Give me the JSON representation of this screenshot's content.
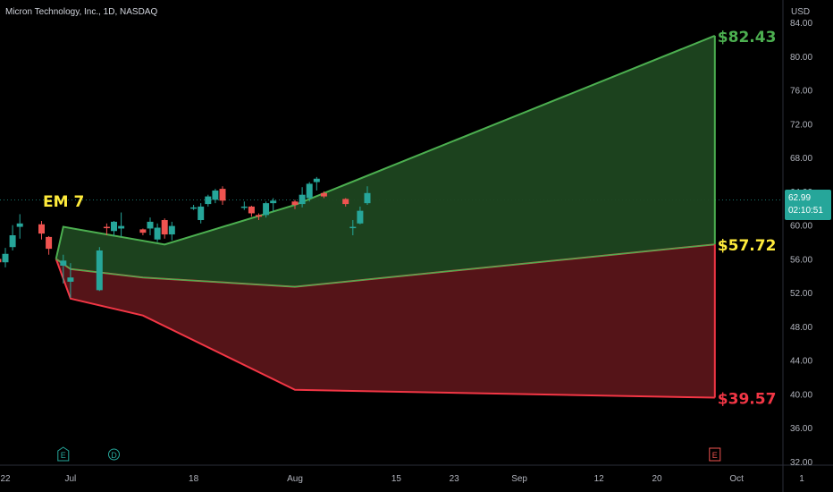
{
  "header": {
    "symbol_title": "Micron Technology, Inc., 1D, NASDAQ"
  },
  "axis": {
    "currency": "USD"
  },
  "price_tag": {
    "price": "62.99",
    "countdown": "02:10:51"
  },
  "colors": {
    "up": "#26a69a",
    "down": "#ef5350",
    "upper_band": "#4caf50",
    "lower_band": "#f23645",
    "upper_fill": "#1e4620",
    "lower_fill": "#5a1519",
    "label_yellow": "#ffeb3b"
  },
  "chart_data": {
    "type": "candlestick",
    "y_ticks": [
      "32.00",
      "36.00",
      "40.00",
      "44.00",
      "48.00",
      "52.00",
      "56.00",
      "60.00",
      "64.00",
      "68.00",
      "72.00",
      "76.00",
      "80.00",
      "84.00"
    ],
    "ylim": [
      32,
      84.5
    ],
    "x_ticks": [
      {
        "label": "22",
        "date": "2022-06-22"
      },
      {
        "label": "Jul",
        "date": "2022-07-01"
      },
      {
        "label": "18",
        "date": "2022-07-18"
      },
      {
        "label": "Aug",
        "date": "2022-08-01"
      },
      {
        "label": "15",
        "date": "2022-08-15"
      },
      {
        "label": "23",
        "date": "2022-08-23"
      },
      {
        "label": "Sep",
        "date": "2022-09-01"
      },
      {
        "label": "12",
        "date": "2022-09-12"
      },
      {
        "label": "20",
        "date": "2022-09-20"
      },
      {
        "label": "Oct",
        "date": "2022-10-01"
      },
      {
        "label": "1",
        "date": "2022-10-10"
      }
    ],
    "candles": [
      {
        "date": "2022-06-21",
        "o": 56.0,
        "h": 56.8,
        "l": 54.5,
        "c": 55.6
      },
      {
        "date": "2022-06-22",
        "o": 55.6,
        "h": 57.3,
        "l": 55.0,
        "c": 56.6
      },
      {
        "date": "2022-06-23",
        "o": 57.4,
        "h": 60.0,
        "l": 57.0,
        "c": 58.8
      },
      {
        "date": "2022-06-24",
        "o": 59.8,
        "h": 61.3,
        "l": 58.4,
        "c": 60.2
      },
      {
        "date": "2022-06-27",
        "o": 60.1,
        "h": 60.5,
        "l": 58.3,
        "c": 59.0
      },
      {
        "date": "2022-06-28",
        "o": 58.6,
        "h": 58.7,
        "l": 56.5,
        "c": 57.2
      },
      {
        "date": "2022-06-30",
        "o": 55.2,
        "h": 56.5,
        "l": 53.1,
        "c": 55.8
      },
      {
        "date": "2022-07-01",
        "o": 53.3,
        "h": 55.5,
        "l": 51.4,
        "c": 53.8
      },
      {
        "date": "2022-07-05",
        "o": 52.3,
        "h": 57.4,
        "l": 52.2,
        "c": 57.0
      },
      {
        "date": "2022-07-06",
        "o": 59.8,
        "h": 60.2,
        "l": 58.8,
        "c": 59.7
      },
      {
        "date": "2022-07-07",
        "o": 59.3,
        "h": 60.5,
        "l": 58.7,
        "c": 60.4
      },
      {
        "date": "2022-07-08",
        "o": 59.6,
        "h": 61.5,
        "l": 58.6,
        "c": 59.9
      },
      {
        "date": "2022-07-11",
        "o": 59.5,
        "h": 59.6,
        "l": 58.8,
        "c": 59.1
      },
      {
        "date": "2022-07-12",
        "o": 59.6,
        "h": 60.9,
        "l": 58.8,
        "c": 60.4
      },
      {
        "date": "2022-07-13",
        "o": 58.3,
        "h": 60.2,
        "l": 58.0,
        "c": 59.7
      },
      {
        "date": "2022-07-14",
        "o": 60.6,
        "h": 60.8,
        "l": 58.4,
        "c": 58.9
      },
      {
        "date": "2022-07-15",
        "o": 58.9,
        "h": 60.4,
        "l": 58.2,
        "c": 59.9
      },
      {
        "date": "2022-07-18",
        "o": 62.0,
        "h": 62.4,
        "l": 61.8,
        "c": 62.1
      },
      {
        "date": "2022-07-19",
        "o": 60.6,
        "h": 62.6,
        "l": 60.2,
        "c": 62.2
      },
      {
        "date": "2022-07-20",
        "o": 62.5,
        "h": 63.6,
        "l": 62.2,
        "c": 63.4
      },
      {
        "date": "2022-07-21",
        "o": 63.0,
        "h": 64.3,
        "l": 62.6,
        "c": 64.1
      },
      {
        "date": "2022-07-22",
        "o": 64.3,
        "h": 64.6,
        "l": 62.4,
        "c": 62.9
      },
      {
        "date": "2022-07-25",
        "o": 62.1,
        "h": 62.8,
        "l": 61.8,
        "c": 62.2
      },
      {
        "date": "2022-07-26",
        "o": 62.2,
        "h": 62.3,
        "l": 61.0,
        "c": 61.4
      },
      {
        "date": "2022-07-27",
        "o": 61.2,
        "h": 61.4,
        "l": 60.6,
        "c": 61.0
      },
      {
        "date": "2022-07-28",
        "o": 61.2,
        "h": 62.8,
        "l": 60.9,
        "c": 62.6
      },
      {
        "date": "2022-07-29",
        "o": 62.6,
        "h": 63.2,
        "l": 61.6,
        "c": 62.9
      },
      {
        "date": "2022-08-01",
        "o": 62.8,
        "h": 63.0,
        "l": 61.9,
        "c": 62.4
      },
      {
        "date": "2022-08-02",
        "o": 62.5,
        "h": 64.5,
        "l": 62.1,
        "c": 63.6
      },
      {
        "date": "2022-08-03",
        "o": 63.2,
        "h": 65.1,
        "l": 62.8,
        "c": 64.9
      },
      {
        "date": "2022-08-04",
        "o": 65.1,
        "h": 65.7,
        "l": 64.1,
        "c": 65.5
      },
      {
        "date": "2022-08-05",
        "o": 63.8,
        "h": 64.0,
        "l": 63.2,
        "c": 63.4
      },
      {
        "date": "2022-08-08",
        "o": 63.1,
        "h": 63.2,
        "l": 62.2,
        "c": 62.5
      },
      {
        "date": "2022-08-09",
        "o": 59.8,
        "h": 60.6,
        "l": 58.8,
        "c": 59.8
      },
      {
        "date": "2022-08-10",
        "o": 60.2,
        "h": 62.2,
        "l": 60.1,
        "c": 61.7
      },
      {
        "date": "2022-08-11",
        "o": 62.6,
        "h": 64.6,
        "l": 62.4,
        "c": 63.8
      }
    ],
    "annotations": [
      {
        "text": "EM 7",
        "color": "#ffeb3b"
      },
      {
        "text": "$82.43",
        "value": 82.43,
        "color": "#4caf50"
      },
      {
        "text": "$57.72",
        "value": 57.72,
        "color": "#ffeb3b"
      },
      {
        "text": "$39.57",
        "value": 39.57,
        "color": "#f23645"
      }
    ],
    "event_markers": [
      {
        "letter": "E",
        "date": "2022-06-30",
        "color": "#26a69a",
        "shape": "pentagon"
      },
      {
        "letter": "D",
        "date": "2022-07-07",
        "color": "#26a69a",
        "shape": "circle"
      },
      {
        "letter": "E",
        "date": "2022-09-28",
        "color": "#ef5350",
        "shape": "square"
      }
    ],
    "upper_band": [
      {
        "date": "2022-06-29",
        "v": 56.0
      },
      {
        "date": "2022-06-30",
        "v": 59.8
      },
      {
        "date": "2022-07-14",
        "v": 57.7
      },
      {
        "date": "2022-08-01",
        "v": 62.4
      },
      {
        "date": "2022-09-28",
        "v": 82.43
      }
    ],
    "mid_band": [
      {
        "date": "2022-06-29",
        "v": 56.0
      },
      {
        "date": "2022-07-01",
        "v": 54.8
      },
      {
        "date": "2022-07-11",
        "v": 53.8
      },
      {
        "date": "2022-08-01",
        "v": 52.7
      },
      {
        "date": "2022-09-28",
        "v": 57.72
      }
    ],
    "lower_band": [
      {
        "date": "2022-06-29",
        "v": 56.0
      },
      {
        "date": "2022-07-01",
        "v": 51.3
      },
      {
        "date": "2022-07-11",
        "v": 49.3
      },
      {
        "date": "2022-08-01",
        "v": 40.5
      },
      {
        "date": "2022-09-28",
        "v": 39.57
      }
    ],
    "last_price": 62.99
  }
}
